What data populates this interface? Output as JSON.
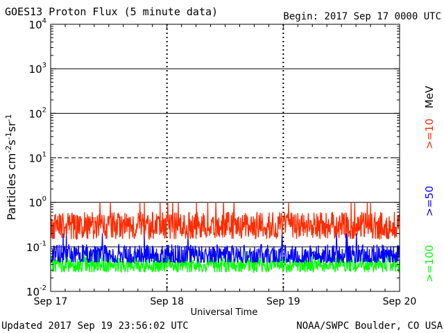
{
  "header": {
    "title": "GOES13 Proton Flux (5 minute data)",
    "begin": "Begin: 2017 Sep 17 0000 UTC"
  },
  "footer": {
    "updated": "Updated 2017 Sep 19 23:56:02 UTC",
    "credit": "NOAA/SWPC Boulder, CO USA"
  },
  "chart_data": {
    "type": "line",
    "title": "GOES13 Proton Flux (5 minute data)",
    "xlabel": "Universal Time",
    "ylabel": "Particles cm-2s-1sr-1",
    "yscale": "log",
    "ylim": [
      0.01,
      10000
    ],
    "xlim": [
      0,
      3
    ],
    "x_ticks": [
      "Sep 17",
      "Sep 18",
      "Sep 19",
      "Sep 20"
    ],
    "y_ticks": [
      {
        "base": "10",
        "exp": "-2"
      },
      {
        "base": "10",
        "exp": "-1"
      },
      {
        "base": "10",
        "exp": "0"
      },
      {
        "base": "10",
        "exp": "1"
      },
      {
        "base": "10",
        "exp": "2"
      },
      {
        "base": "10",
        "exp": "3"
      },
      {
        "base": "10",
        "exp": "4"
      }
    ],
    "threshold_line": 10,
    "series": [
      {
        "name": ">=10",
        "color": "#ff2a00",
        "mean": 0.3,
        "low": 0.15,
        "high": 1.0
      },
      {
        "name": ">=50",
        "color": "#0000ff",
        "mean": 0.065,
        "low": 0.045,
        "high": 0.2
      },
      {
        "name": ">=100",
        "color": "#00ff00",
        "mean": 0.04,
        "low": 0.027,
        "high": 0.08
      }
    ],
    "unit_label": "MeV"
  }
}
